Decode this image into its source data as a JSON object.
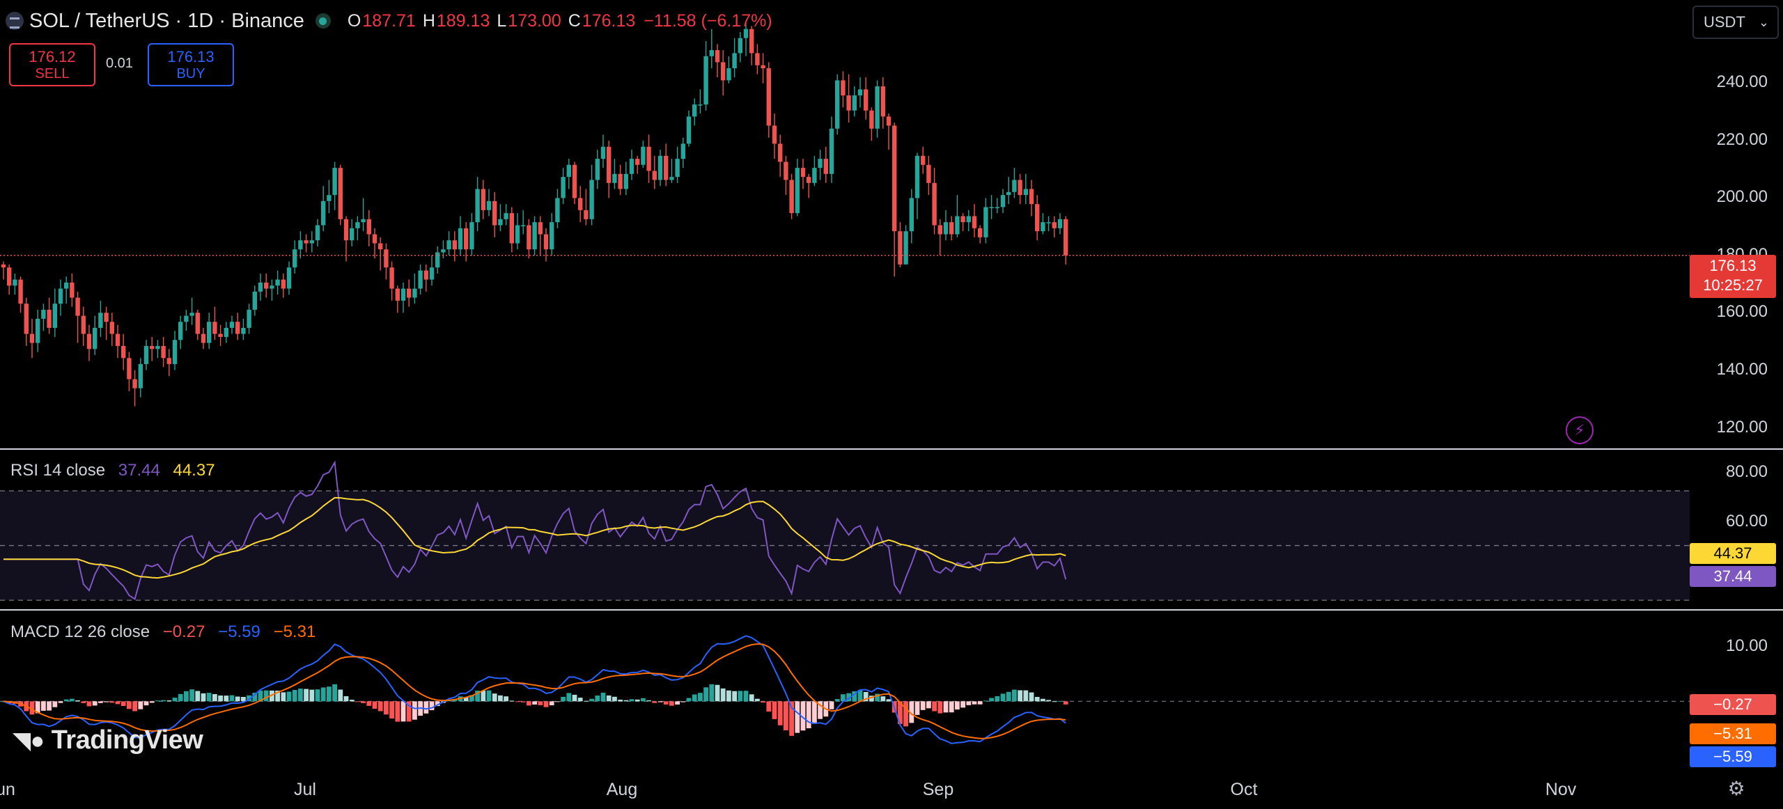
{
  "header": {
    "symbol": "SOL / TetherUS · 1D · Binance",
    "open_key": "O",
    "open": "187.71",
    "high_key": "H",
    "high": "189.13",
    "low_key": "L",
    "low": "173.00",
    "close_key": "C",
    "close": "176.13",
    "change": "−11.58 (−6.17%)"
  },
  "trade": {
    "sell_price": "176.12",
    "sell_label": "SELL",
    "spread": "0.01",
    "buy_price": "176.13",
    "buy_label": "BUY"
  },
  "currency": "USDT",
  "price_axis": {
    "labels": [
      "240.00",
      "220.00",
      "200.00",
      "180.00",
      "160.00",
      "140.00",
      "120.00"
    ]
  },
  "last_price": {
    "value": "176.13",
    "countdown": "10:25:27"
  },
  "rsi": {
    "title": "RSI 14 close",
    "value": "37.44",
    "ma": "44.37",
    "axis": [
      "80.00",
      "60.00"
    ]
  },
  "macd": {
    "title": "MACD 12 26 close",
    "hist": "−0.27",
    "macd": "−5.59",
    "signal": "−5.31",
    "axis": [
      "10.00"
    ]
  },
  "time_axis": [
    "un",
    "Jul",
    "Aug",
    "Sep",
    "Oct",
    "Nov"
  ],
  "branding": "TradingView",
  "colors": {
    "up": "#26a69a",
    "down": "#ef5350",
    "rsi": "#7e57c2",
    "rsi_ma": "#fdd835",
    "macd": "#2962ff",
    "signal": "#ff6d00"
  },
  "icons": [
    "symbol-logo-icon",
    "market-status-icon",
    "lightning-icon",
    "settings-gear-icon",
    "chevron-down-icon"
  ],
  "chart_data": {
    "type": "candlestick",
    "ylim": [
      113,
      256
    ],
    "candles": [
      [
        173,
        172,
        174,
        168
      ],
      [
        172,
        166,
        173,
        163
      ],
      [
        166,
        168,
        170,
        163
      ],
      [
        168,
        160,
        169,
        157
      ],
      [
        160,
        150,
        162,
        146
      ],
      [
        150,
        147,
        155,
        142
      ],
      [
        147,
        155,
        158,
        144
      ],
      [
        155,
        158,
        160,
        151
      ],
      [
        158,
        152,
        162,
        150
      ],
      [
        152,
        160,
        165,
        149
      ],
      [
        160,
        165,
        168,
        156
      ],
      [
        165,
        167,
        169,
        160
      ],
      [
        167,
        162,
        170,
        159
      ],
      [
        162,
        156,
        164,
        147
      ],
      [
        156,
        150,
        159,
        146
      ],
      [
        150,
        145,
        153,
        141
      ],
      [
        145,
        152,
        156,
        143
      ],
      [
        152,
        157,
        161,
        149
      ],
      [
        157,
        154,
        159,
        148
      ],
      [
        154,
        150,
        157,
        146
      ],
      [
        150,
        146,
        153,
        142
      ],
      [
        146,
        142,
        150,
        138
      ],
      [
        142,
        135,
        144,
        131
      ],
      [
        135,
        132,
        138,
        126
      ],
      [
        132,
        140,
        142,
        129
      ],
      [
        140,
        146,
        148,
        138
      ],
      [
        146,
        145,
        149,
        141
      ],
      [
        145,
        146,
        148,
        142
      ],
      [
        146,
        142,
        149,
        139
      ],
      [
        142,
        140,
        145,
        136
      ],
      [
        140,
        148,
        151,
        138
      ],
      [
        148,
        154,
        156,
        145
      ],
      [
        154,
        156,
        158,
        151
      ],
      [
        156,
        157,
        162,
        153
      ],
      [
        157,
        150,
        158,
        148
      ],
      [
        150,
        147,
        152,
        145
      ],
      [
        147,
        154,
        157,
        145
      ],
      [
        154,
        150,
        159,
        148
      ],
      [
        150,
        149,
        153,
        146
      ],
      [
        149,
        152,
        154,
        147
      ],
      [
        152,
        154,
        156,
        150
      ],
      [
        154,
        150,
        157,
        148
      ],
      [
        150,
        152,
        155,
        148
      ],
      [
        152,
        158,
        160,
        150
      ],
      [
        158,
        164,
        166,
        156
      ],
      [
        164,
        167,
        170,
        161
      ],
      [
        167,
        165,
        170,
        162
      ],
      [
        165,
        166,
        168,
        161
      ],
      [
        166,
        168,
        171,
        163
      ],
      [
        168,
        165,
        170,
        162
      ],
      [
        165,
        172,
        174,
        163
      ],
      [
        172,
        178,
        181,
        170
      ],
      [
        178,
        181,
        184,
        175
      ],
      [
        181,
        180,
        183,
        177
      ],
      [
        180,
        181,
        184,
        177
      ],
      [
        181,
        186,
        188,
        179
      ],
      [
        186,
        194,
        199,
        184
      ],
      [
        194,
        196,
        201,
        190
      ],
      [
        196,
        205,
        207,
        191
      ],
      [
        205,
        188,
        206,
        186
      ],
      [
        188,
        181,
        189,
        174
      ],
      [
        181,
        185,
        188,
        179
      ],
      [
        185,
        187,
        189,
        181
      ],
      [
        187,
        188,
        195,
        184
      ],
      [
        188,
        183,
        191,
        179
      ],
      [
        183,
        180,
        185,
        175
      ],
      [
        180,
        178,
        182,
        171
      ],
      [
        178,
        172,
        180,
        168
      ],
      [
        172,
        165,
        174,
        161
      ],
      [
        165,
        161,
        166,
        157
      ],
      [
        161,
        165,
        167,
        157
      ],
      [
        165,
        162,
        168,
        159
      ],
      [
        162,
        165,
        170,
        160
      ],
      [
        165,
        171,
        173,
        163
      ],
      [
        171,
        168,
        173,
        164
      ],
      [
        168,
        172,
        176,
        166
      ],
      [
        172,
        177,
        179,
        170
      ],
      [
        177,
        178,
        181,
        175
      ],
      [
        178,
        181,
        184,
        176
      ],
      [
        181,
        178,
        184,
        174
      ],
      [
        178,
        185,
        189,
        176
      ],
      [
        185,
        178,
        187,
        174
      ],
      [
        178,
        187,
        190,
        176
      ],
      [
        187,
        198,
        202,
        184
      ],
      [
        198,
        191,
        201,
        188
      ],
      [
        191,
        194,
        198,
        189
      ],
      [
        194,
        186,
        197,
        182
      ],
      [
        186,
        188,
        193,
        184
      ],
      [
        188,
        190,
        193,
        186
      ],
      [
        190,
        180,
        192,
        177
      ],
      [
        180,
        186,
        190,
        178
      ],
      [
        186,
        186,
        191,
        183
      ],
      [
        186,
        178,
        188,
        175
      ],
      [
        178,
        187,
        189,
        176
      ],
      [
        187,
        183,
        189,
        176
      ],
      [
        183,
        178,
        185,
        174
      ],
      [
        178,
        187,
        190,
        176
      ],
      [
        187,
        195,
        198,
        185
      ],
      [
        195,
        202,
        205,
        193
      ],
      [
        202,
        206,
        208,
        198
      ],
      [
        206,
        195,
        207,
        193
      ],
      [
        195,
        191,
        199,
        187
      ],
      [
        191,
        188,
        198,
        186
      ],
      [
        188,
        201,
        206,
        186
      ],
      [
        201,
        208,
        211,
        198
      ],
      [
        208,
        212,
        216,
        205
      ],
      [
        212,
        200,
        214,
        195
      ],
      [
        200,
        203,
        208,
        198
      ],
      [
        203,
        198,
        206,
        196
      ],
      [
        198,
        203,
        207,
        196
      ],
      [
        203,
        208,
        211,
        201
      ],
      [
        208,
        206,
        209,
        203
      ],
      [
        206,
        212,
        214,
        205
      ],
      [
        212,
        204,
        216,
        200
      ],
      [
        204,
        201,
        209,
        198
      ],
      [
        201,
        209,
        211,
        199
      ],
      [
        209,
        201,
        213,
        199
      ],
      [
        201,
        202,
        208,
        200
      ],
      [
        202,
        208,
        212,
        200
      ],
      [
        208,
        213,
        215,
        205
      ],
      [
        213,
        222,
        224,
        212
      ],
      [
        222,
        226,
        228,
        219
      ],
      [
        226,
        226,
        231,
        223
      ],
      [
        226,
        242,
        247,
        224
      ],
      [
        242,
        244,
        251,
        238
      ],
      [
        244,
        240,
        246,
        235
      ],
      [
        240,
        234,
        244,
        229
      ],
      [
        234,
        238,
        242,
        233
      ],
      [
        238,
        243,
        248,
        235
      ],
      [
        243,
        248,
        250,
        240
      ],
      [
        248,
        251,
        253,
        242
      ],
      [
        251,
        243,
        252,
        239
      ],
      [
        243,
        239,
        246,
        236
      ],
      [
        239,
        238,
        243,
        233
      ],
      [
        238,
        219,
        240,
        215
      ],
      [
        219,
        213,
        223,
        208
      ],
      [
        213,
        207,
        216,
        202
      ],
      [
        207,
        201,
        209,
        196
      ],
      [
        201,
        190,
        203,
        188
      ],
      [
        190,
        205,
        208,
        189
      ],
      [
        205,
        202,
        208,
        198
      ],
      [
        202,
        200,
        203,
        195
      ],
      [
        200,
        205,
        209,
        199
      ],
      [
        205,
        208,
        211,
        201
      ],
      [
        208,
        203,
        212,
        200
      ],
      [
        203,
        218,
        222,
        200
      ],
      [
        218,
        234,
        236,
        216
      ],
      [
        234,
        229,
        237,
        225
      ],
      [
        229,
        224,
        236,
        220
      ],
      [
        224,
        229,
        232,
        222
      ],
      [
        229,
        231,
        235,
        225
      ],
      [
        231,
        224,
        235,
        221
      ],
      [
        224,
        218,
        225,
        214
      ],
      [
        218,
        232,
        234,
        215
      ],
      [
        232,
        222,
        235,
        218
      ],
      [
        222,
        219,
        223,
        211
      ],
      [
        219,
        184,
        220,
        169
      ],
      [
        184,
        173,
        187,
        172
      ],
      [
        173,
        184,
        186,
        176
      ],
      [
        184,
        195,
        198,
        180
      ],
      [
        195,
        209,
        210,
        188
      ],
      [
        209,
        206,
        212,
        203
      ],
      [
        206,
        200,
        209,
        196
      ],
      [
        200,
        186,
        205,
        183
      ],
      [
        186,
        183,
        188,
        176
      ],
      [
        183,
        187,
        191,
        181
      ],
      [
        187,
        183,
        189,
        181
      ],
      [
        183,
        189,
        196,
        182
      ],
      [
        189,
        187,
        190,
        184
      ],
      [
        187,
        189,
        191,
        184
      ],
      [
        189,
        185,
        193,
        182
      ],
      [
        185,
        182,
        186,
        180
      ],
      [
        182,
        192,
        195,
        180
      ],
      [
        192,
        192,
        196,
        188
      ],
      [
        192,
        192,
        195,
        190
      ],
      [
        192,
        196,
        198,
        190
      ],
      [
        196,
        197,
        202,
        193
      ],
      [
        197,
        201,
        205,
        195
      ],
      [
        201,
        196,
        203,
        193
      ],
      [
        196,
        198,
        203,
        193
      ],
      [
        198,
        193,
        201,
        189
      ],
      [
        193,
        184,
        196,
        181
      ],
      [
        184,
        187,
        190,
        183
      ],
      [
        187,
        187,
        189,
        184
      ],
      [
        187,
        185,
        189,
        182
      ],
      [
        185,
        188,
        190,
        183
      ],
      [
        188,
        176,
        189,
        173
      ]
    ],
    "rsi_range": [
      28,
      84
    ],
    "macd_range": [
      -14,
      16
    ],
    "months": [
      "un",
      "Jul",
      "Aug",
      "Sep",
      "Oct",
      "Nov"
    ]
  }
}
